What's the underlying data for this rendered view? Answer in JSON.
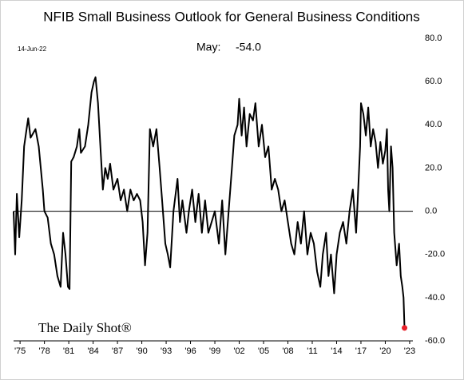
{
  "chart_data": {
    "type": "line",
    "title": "NFIB Small Business Outlook for General Business Conditions",
    "date_note": "14-Jun-22",
    "annotation_label": "May:",
    "annotation_value": "-54.0",
    "source": "The Daily Shot®",
    "x": [
      1974.2,
      1974.4,
      1974.6,
      1974.9,
      1975.2,
      1975.5,
      1975.8,
      1976.0,
      1976.3,
      1976.6,
      1976.9,
      1977.3,
      1977.8,
      1978.0,
      1978.4,
      1978.8,
      1979.2,
      1979.6,
      1980.0,
      1980.3,
      1980.6,
      1980.9,
      1981.1,
      1981.3,
      1981.6,
      1982.0,
      1982.3,
      1982.5,
      1983.0,
      1983.4,
      1983.8,
      1984.1,
      1984.3,
      1984.6,
      1984.9,
      1985.2,
      1985.5,
      1985.8,
      1986.1,
      1986.5,
      1987.0,
      1987.4,
      1987.8,
      1988.2,
      1988.6,
      1989.0,
      1989.4,
      1989.8,
      1990.1,
      1990.4,
      1990.7,
      1991.0,
      1991.4,
      1991.8,
      1992.2,
      1992.5,
      1992.9,
      1993.2,
      1993.5,
      1993.9,
      1994.4,
      1994.7,
      1995.0,
      1995.5,
      1995.8,
      1996.2,
      1996.6,
      1997.0,
      1997.4,
      1997.8,
      1998.2,
      1998.6,
      1999.0,
      1999.5,
      1999.9,
      2000.3,
      2000.7,
      2001.1,
      2001.4,
      2001.8,
      2002.0,
      2002.3,
      2002.6,
      2002.9,
      2003.3,
      2003.7,
      2004.0,
      2004.4,
      2004.8,
      2005.2,
      2005.6,
      2006.0,
      2006.4,
      2006.8,
      2007.2,
      2007.6,
      2008.0,
      2008.4,
      2008.8,
      2009.2,
      2009.6,
      2010.0,
      2010.4,
      2010.8,
      2011.2,
      2011.6,
      2012.0,
      2012.3,
      2012.7,
      2013.0,
      2013.3,
      2013.7,
      2014.0,
      2014.4,
      2014.8,
      2015.2,
      2015.6,
      2016.0,
      2016.4,
      2016.6,
      2016.9,
      2017.0,
      2017.3,
      2017.6,
      2017.9,
      2018.2,
      2018.5,
      2018.8,
      2019.1,
      2019.4,
      2019.7,
      2020.0,
      2020.2,
      2020.35,
      2020.5,
      2020.7,
      2020.9,
      2021.1,
      2021.4,
      2021.7,
      2021.9,
      2022.1,
      2022.25,
      2022.37
    ],
    "series": [
      {
        "name": "NFIB outlook",
        "color": "#000000",
        "values": [
          0,
          -20,
          8,
          -12,
          5,
          30,
          38,
          43,
          34,
          36,
          38,
          30,
          10,
          0,
          -3,
          -15,
          -20,
          -30,
          -35,
          -10,
          -20,
          -35,
          -36,
          23,
          25,
          30,
          38,
          27,
          30,
          40,
          55,
          60,
          62,
          50,
          30,
          10,
          20,
          15,
          22,
          10,
          15,
          5,
          10,
          0,
          10,
          5,
          8,
          5,
          -5,
          -25,
          -10,
          38,
          30,
          38,
          20,
          5,
          -15,
          -20,
          -26,
          0,
          15,
          -5,
          5,
          -10,
          0,
          10,
          -5,
          8,
          -10,
          5,
          -10,
          -5,
          0,
          -15,
          5,
          -20,
          0,
          20,
          35,
          40,
          52,
          35,
          48,
          30,
          45,
          42,
          50,
          30,
          40,
          25,
          30,
          10,
          15,
          10,
          0,
          5,
          -5,
          -15,
          -20,
          -5,
          -15,
          0,
          -20,
          -10,
          -15,
          -28,
          -35,
          -20,
          -10,
          -30,
          -20,
          -38,
          -20,
          -10,
          -5,
          -15,
          0,
          10,
          -10,
          5,
          30,
          50,
          45,
          35,
          48,
          30,
          38,
          32,
          20,
          32,
          22,
          28,
          38,
          10,
          0,
          30,
          20,
          -10,
          -25,
          -15,
          -30,
          -35,
          -40,
          -54
        ]
      }
    ],
    "last_point_color": "#e8202a",
    "xlim": [
      1974.2,
      2023.4
    ],
    "xticks": [
      {
        "value": 1975,
        "label": "'75"
      },
      {
        "value": 1978,
        "label": "'78"
      },
      {
        "value": 1981,
        "label": "'81"
      },
      {
        "value": 1984,
        "label": "'84"
      },
      {
        "value": 1987,
        "label": "'87"
      },
      {
        "value": 1990,
        "label": "'90"
      },
      {
        "value": 1993,
        "label": "'93"
      },
      {
        "value": 1996,
        "label": "'96"
      },
      {
        "value": 1999,
        "label": "'99"
      },
      {
        "value": 2002,
        "label": "'02"
      },
      {
        "value": 2005,
        "label": "'05"
      },
      {
        "value": 2008,
        "label": "'08"
      },
      {
        "value": 2011,
        "label": "'11"
      },
      {
        "value": 2014,
        "label": "'14"
      },
      {
        "value": 2017,
        "label": "'17"
      },
      {
        "value": 2020,
        "label": "'20"
      },
      {
        "value": 2023,
        "label": "'23"
      }
    ],
    "ylim": [
      -60,
      80
    ],
    "yticks": [
      {
        "value": -60,
        "label": "-60.0"
      },
      {
        "value": -40,
        "label": "-40.0"
      },
      {
        "value": -20,
        "label": "-20.0"
      },
      {
        "value": 0,
        "label": "0.0"
      },
      {
        "value": 20,
        "label": "20.0"
      },
      {
        "value": 40,
        "label": "40.0"
      },
      {
        "value": 60,
        "label": "60.0"
      },
      {
        "value": 80,
        "label": "80.0"
      }
    ],
    "zero_line": true
  }
}
